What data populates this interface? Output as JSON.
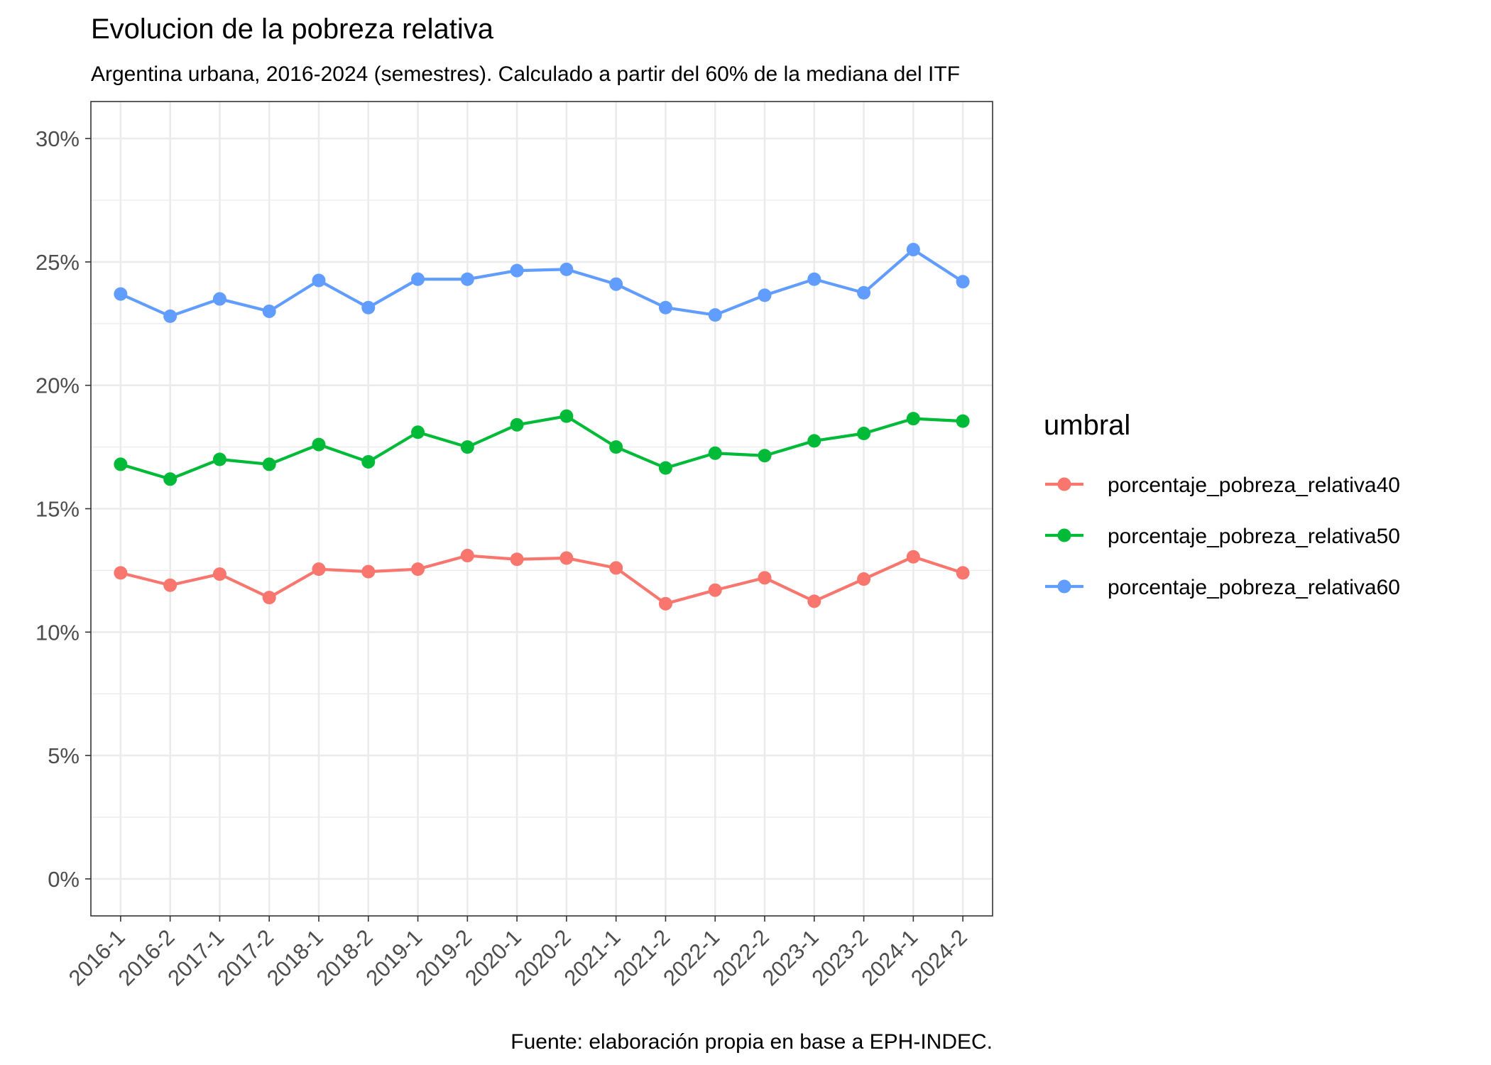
{
  "chart_data": {
    "type": "line",
    "title": "Evolucion de la pobreza relativa",
    "subtitle": "Argentina urbana, 2016-2024 (semestres). Calculado a partir del 60% de la mediana del ITF",
    "caption": "Fuente: elaboración propia en base a EPH-INDEC.",
    "xlabel": "",
    "ylabel": "",
    "categories": [
      "2016-1",
      "2016-2",
      "2017-1",
      "2017-2",
      "2018-1",
      "2018-2",
      "2019-1",
      "2019-2",
      "2020-1",
      "2020-2",
      "2021-1",
      "2021-2",
      "2022-1",
      "2022-2",
      "2023-1",
      "2023-2",
      "2024-1",
      "2024-2"
    ],
    "y_ticks": [
      0,
      5,
      10,
      15,
      20,
      25,
      30
    ],
    "y_tick_labels": [
      "0%",
      "5%",
      "10%",
      "15%",
      "20%",
      "25%",
      "30%"
    ],
    "ylim": [
      -1.5,
      31.5
    ],
    "grid": true,
    "legend": {
      "title": "umbral",
      "position": "right"
    },
    "series": [
      {
        "name": "porcentaje_pobreza_relativa40",
        "color": "#F8766D",
        "values": [
          12.4,
          11.9,
          12.35,
          11.4,
          12.55,
          12.45,
          12.55,
          13.1,
          12.95,
          13.0,
          12.6,
          11.15,
          11.7,
          12.2,
          11.25,
          12.15,
          13.05,
          12.4
        ]
      },
      {
        "name": "porcentaje_pobreza_relativa50",
        "color": "#00BA38",
        "values": [
          16.8,
          16.2,
          17.0,
          16.8,
          17.6,
          16.9,
          18.1,
          17.5,
          18.4,
          18.75,
          17.5,
          16.65,
          17.25,
          17.15,
          17.75,
          18.05,
          18.65,
          18.55
        ]
      },
      {
        "name": "porcentaje_pobreza_relativa60",
        "color": "#619CFF",
        "values": [
          23.7,
          22.8,
          23.5,
          23.0,
          24.25,
          23.15,
          24.3,
          24.3,
          24.65,
          24.7,
          24.1,
          23.15,
          22.85,
          23.65,
          24.3,
          23.75,
          25.5,
          24.2
        ]
      }
    ]
  }
}
